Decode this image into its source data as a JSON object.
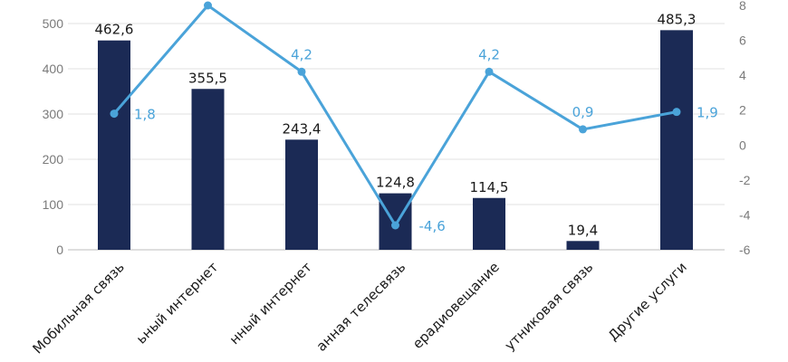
{
  "chart_data": {
    "type": "bar",
    "categories": [
      "Мобильная связь",
      "Фиксированный интернет",
      "Мобильный интернет",
      "Платная телесвязь",
      "Телерадиовещание",
      "Спутниковая связь",
      "Другие услуги"
    ],
    "category_labels_visible": [
      "Мобильная связь",
      "ьный интернет",
      "нный интернет",
      "анная телесвязь",
      "ерадиовещание",
      "утниковая связь",
      "Другие услуги"
    ],
    "series": [
      {
        "type": "bar",
        "values": [
          462.6,
          355.5,
          243.4,
          124.8,
          114.5,
          19.4,
          485.3
        ],
        "labels": [
          "462,6",
          "355,5",
          "243,4",
          "124,8",
          "114,5",
          "19,4",
          "485,3"
        ],
        "axis": "left",
        "color": "#1b2a55"
      },
      {
        "type": "line",
        "values": [
          1.8,
          8.0,
          4.2,
          -4.6,
          4.2,
          0.9,
          1.9
        ],
        "labels": [
          "1,8",
          "",
          "4,2",
          "-4,6",
          "4,2",
          "0,9",
          "1,9"
        ],
        "axis": "right",
        "color": "#4aa3d9"
      }
    ],
    "y_left": {
      "ylim": [
        0,
        500
      ],
      "ticks": [
        "0",
        "100",
        "200",
        "300",
        "400",
        "500"
      ]
    },
    "y_right": {
      "ylim": [
        -6,
        8
      ],
      "ticks": [
        "-6",
        "-4",
        "-2",
        "0",
        "2",
        "4",
        "6",
        "8"
      ]
    },
    "grid": true,
    "title": "",
    "xlabel": "",
    "ylabel": ""
  }
}
